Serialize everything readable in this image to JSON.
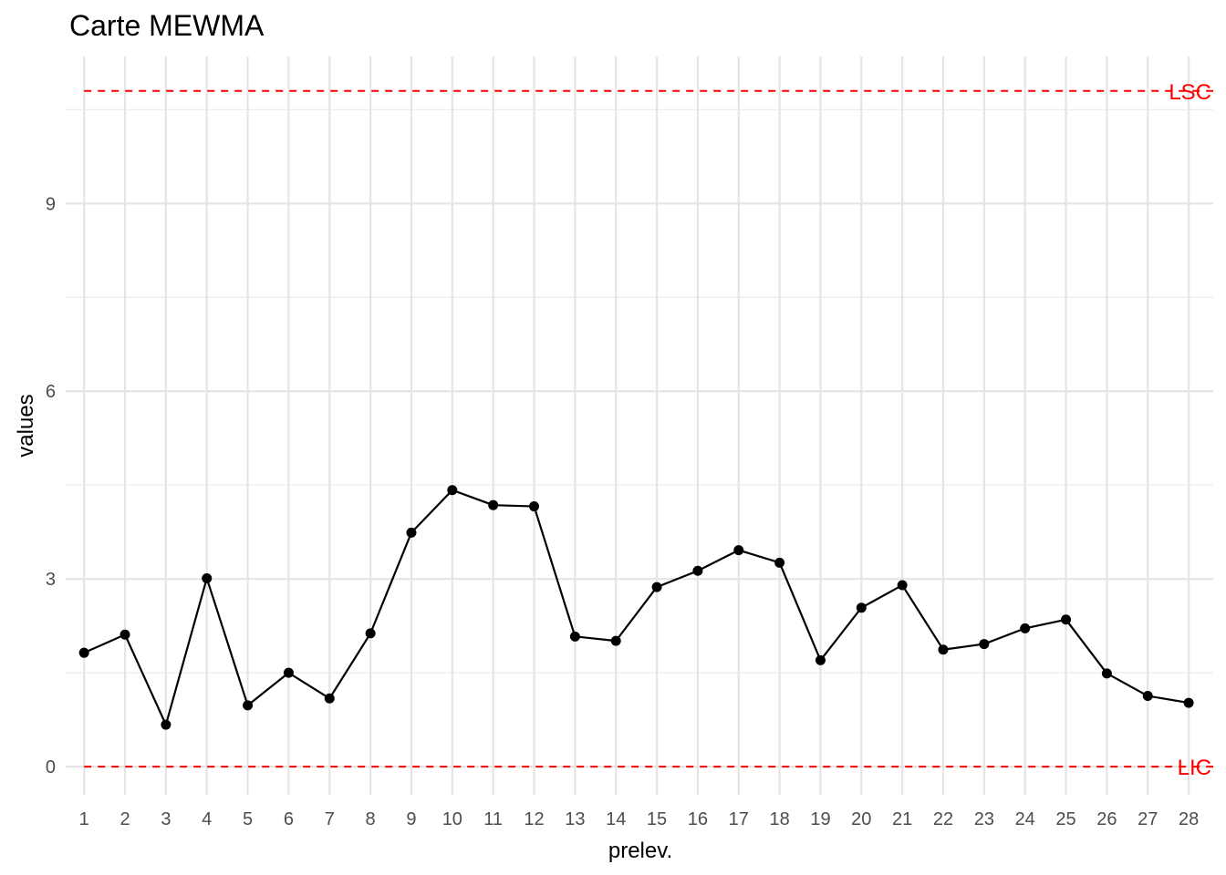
{
  "chart_data": {
    "type": "line",
    "title": "Carte MEWMA",
    "xlabel": "prelev.",
    "ylabel": "values",
    "x": [
      1,
      2,
      3,
      4,
      5,
      6,
      7,
      8,
      9,
      10,
      11,
      12,
      13,
      14,
      15,
      16,
      17,
      18,
      19,
      20,
      21,
      22,
      23,
      24,
      25,
      26,
      27,
      28
    ],
    "series": [
      {
        "values": [
          1.82,
          2.11,
          0.67,
          3.01,
          0.98,
          1.5,
          1.09,
          2.13,
          3.74,
          4.42,
          4.18,
          4.16,
          2.08,
          2.01,
          2.87,
          3.13,
          3.46,
          3.26,
          1.7,
          2.54,
          2.9,
          1.87,
          1.96,
          2.21,
          2.35,
          1.49,
          1.13,
          1.02
        ],
        "color": "#000000"
      }
    ],
    "limits": [
      {
        "label": "LSC",
        "value": 10.8,
        "color": "#ff0000",
        "style": "dashed"
      },
      {
        "label": "LIC",
        "value": 0,
        "color": "#ff0000",
        "style": "dashed"
      }
    ],
    "yticks": [
      0,
      3,
      6,
      9
    ],
    "ylim": [
      -0.45,
      11.35
    ],
    "xlim": [
      0.55,
      28.6
    ],
    "grid": true,
    "legend": "none"
  }
}
